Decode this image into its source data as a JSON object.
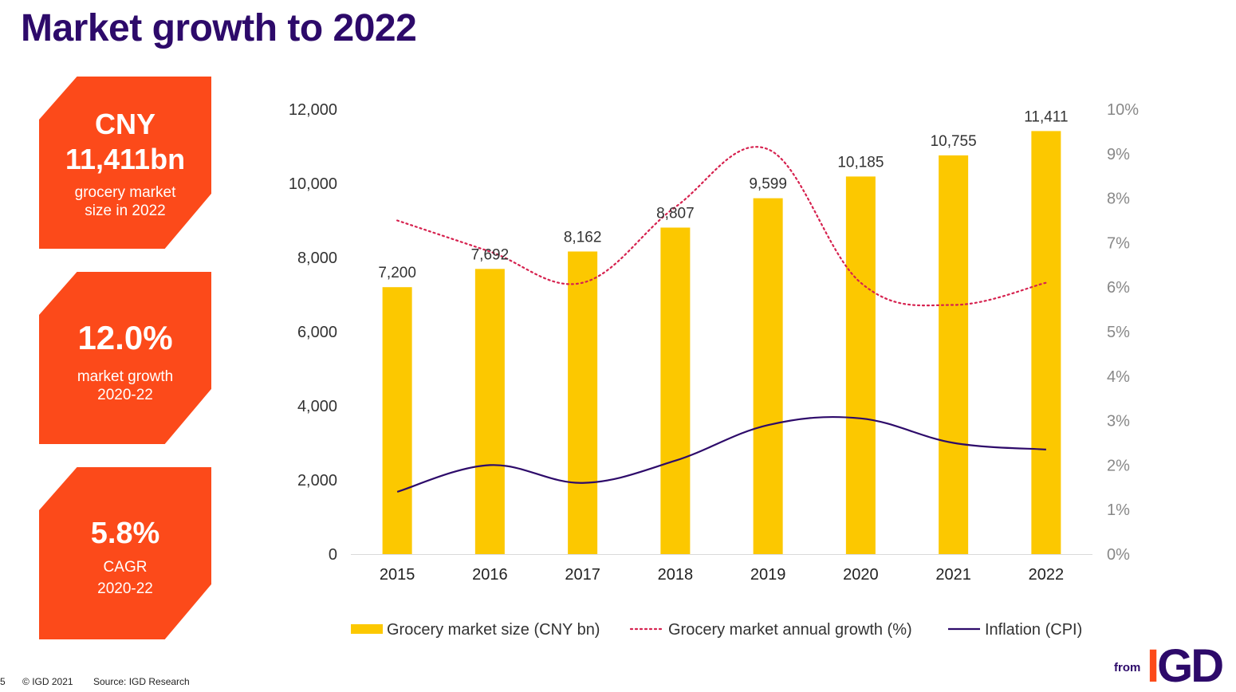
{
  "title": "Market growth to 2022",
  "kpis": [
    {
      "line1": "CNY",
      "line2": "11,411bn",
      "line3": "grocery market",
      "line4": "size in 2022"
    },
    {
      "line1": "12.0%",
      "line2": "market growth",
      "line3": "2020-22"
    },
    {
      "line1": "5.8%",
      "line2": "CAGR",
      "line3": "2020-22"
    }
  ],
  "footer": {
    "page_number": "5",
    "copyright": "© IGD 2021",
    "source": "Source: IGD Research"
  },
  "logo": {
    "from": "from",
    "brand_first": "I",
    "brand_rest": "GD"
  },
  "chart_data": {
    "type": "bar",
    "categories": [
      "2015",
      "2016",
      "2017",
      "2018",
      "2019",
      "2020",
      "2021",
      "2022"
    ],
    "series": [
      {
        "name": "Grocery market size (CNY bn)",
        "type": "bar",
        "axis": "left",
        "values": [
          7200,
          7692,
          8162,
          8807,
          9599,
          10185,
          10755,
          11411
        ],
        "labels": [
          "7,200",
          "7,692",
          "8,162",
          "8,807",
          "9,599",
          "10,185",
          "10,755",
          "11,411"
        ],
        "color": "#fcc800"
      },
      {
        "name": "Grocery market annual growth (%)",
        "type": "line",
        "style": "dotted",
        "axis": "right",
        "values": [
          7.5,
          6.8,
          6.1,
          7.8,
          9.1,
          6.1,
          5.6,
          6.1
        ],
        "color": "#d6224f"
      },
      {
        "name": "Inflation (CPI)",
        "type": "line",
        "style": "solid",
        "axis": "right",
        "values": [
          1.4,
          2.0,
          1.6,
          2.1,
          2.9,
          3.05,
          2.5,
          2.35
        ],
        "color": "#2d0a6a"
      }
    ],
    "left_axis": {
      "min": 0,
      "max": 12000,
      "ticks": [
        "0",
        "2,000",
        "4,000",
        "6,000",
        "8,000",
        "10,000",
        "12,000"
      ]
    },
    "right_axis": {
      "min": 0,
      "max": 10,
      "ticks": [
        "0%",
        "1%",
        "2%",
        "3%",
        "4%",
        "5%",
        "6%",
        "7%",
        "8%",
        "9%",
        "10%"
      ]
    },
    "grid": false,
    "legend": "bottom"
  }
}
